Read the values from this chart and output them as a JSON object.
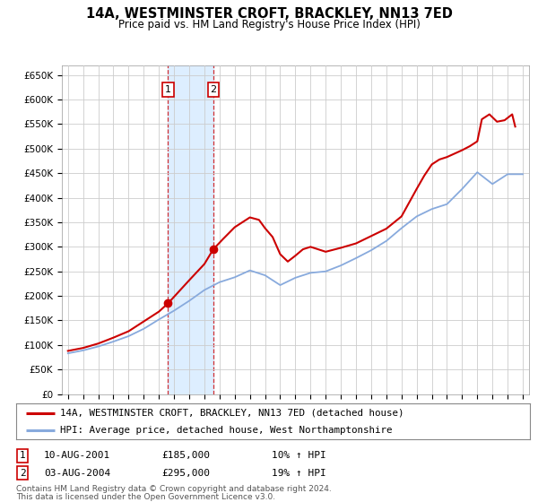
{
  "title": "14A, WESTMINSTER CROFT, BRACKLEY, NN13 7ED",
  "subtitle": "Price paid vs. HM Land Registry's House Price Index (HPI)",
  "ylim": [
    0,
    670000
  ],
  "yticks": [
    0,
    50000,
    100000,
    150000,
    200000,
    250000,
    300000,
    350000,
    400000,
    450000,
    500000,
    550000,
    600000,
    650000
  ],
  "ytick_labels": [
    "£0",
    "£50K",
    "£100K",
    "£150K",
    "£200K",
    "£250K",
    "£300K",
    "£350K",
    "£400K",
    "£450K",
    "£500K",
    "£550K",
    "£600K",
    "£650K"
  ],
  "xlim_start": 1994.6,
  "xlim_end": 2025.4,
  "purchase1_date": 2001.608,
  "purchase1_price": 185000,
  "purchase2_date": 2004.586,
  "purchase2_price": 295000,
  "shade_start": 2001.608,
  "shade_end": 2004.586,
  "grid_color": "#cccccc",
  "price_line_color": "#cc0000",
  "hpi_line_color": "#88aadd",
  "shade_color": "#ddeeff",
  "marker_color": "#cc0000",
  "legend_label_price": "14A, WESTMINSTER CROFT, BRACKLEY, NN13 7ED (detached house)",
  "legend_label_hpi": "HPI: Average price, detached house, West Northamptonshire",
  "table_row1": [
    "1",
    "10-AUG-2001",
    "£185,000",
    "10% ↑ HPI"
  ],
  "table_row2": [
    "2",
    "03-AUG-2004",
    "£295,000",
    "19% ↑ HPI"
  ],
  "footer1": "Contains HM Land Registry data © Crown copyright and database right 2024.",
  "footer2": "This data is licensed under the Open Government Licence v3.0.",
  "background_color": "#ffffff",
  "title_fontsize": 10.5,
  "subtitle_fontsize": 8.5,
  "tick_fontsize": 7.5,
  "legend_fontsize": 7.8,
  "table_fontsize": 8,
  "footer_fontsize": 6.5,
  "hpi_years": [
    1995,
    1996,
    1997,
    1998,
    1999,
    2000,
    2001,
    2002,
    2003,
    2004,
    2005,
    2006,
    2007,
    2008,
    2009,
    2010,
    2011,
    2012,
    2013,
    2014,
    2015,
    2016,
    2017,
    2018,
    2019,
    2020,
    2021,
    2022,
    2023,
    2024,
    2025
  ],
  "hpi_values": [
    83000,
    89000,
    97000,
    107000,
    118000,
    133000,
    152000,
    170000,
    190000,
    212000,
    228000,
    238000,
    252000,
    242000,
    222000,
    237000,
    247000,
    250000,
    262000,
    277000,
    293000,
    312000,
    338000,
    362000,
    377000,
    387000,
    418000,
    452000,
    428000,
    448000,
    448000
  ],
  "price_years": [
    1995.0,
    1996.0,
    1997.0,
    1998.0,
    1999.0,
    2000.0,
    2001.0,
    2001.608,
    2002.2,
    2003.0,
    2004.0,
    2004.586,
    2005.2,
    2006.0,
    2007.0,
    2007.6,
    2008.0,
    2008.5,
    2009.0,
    2009.5,
    2010.0,
    2010.5,
    2011.0,
    2011.5,
    2012.0,
    2013.0,
    2014.0,
    2015.0,
    2016.0,
    2017.0,
    2018.0,
    2018.5,
    2019.0,
    2019.5,
    2020.0,
    2020.5,
    2021.0,
    2021.5,
    2022.0,
    2022.3,
    2022.8,
    2023.3,
    2023.8,
    2024.3,
    2024.5
  ],
  "price_values": [
    88000,
    94000,
    103000,
    115000,
    128000,
    148000,
    168000,
    185000,
    205000,
    232000,
    265000,
    295000,
    315000,
    340000,
    360000,
    355000,
    338000,
    320000,
    285000,
    270000,
    282000,
    295000,
    300000,
    295000,
    290000,
    298000,
    307000,
    322000,
    337000,
    362000,
    418000,
    445000,
    468000,
    478000,
    483000,
    490000,
    497000,
    505000,
    515000,
    560000,
    570000,
    555000,
    558000,
    570000,
    545000
  ]
}
